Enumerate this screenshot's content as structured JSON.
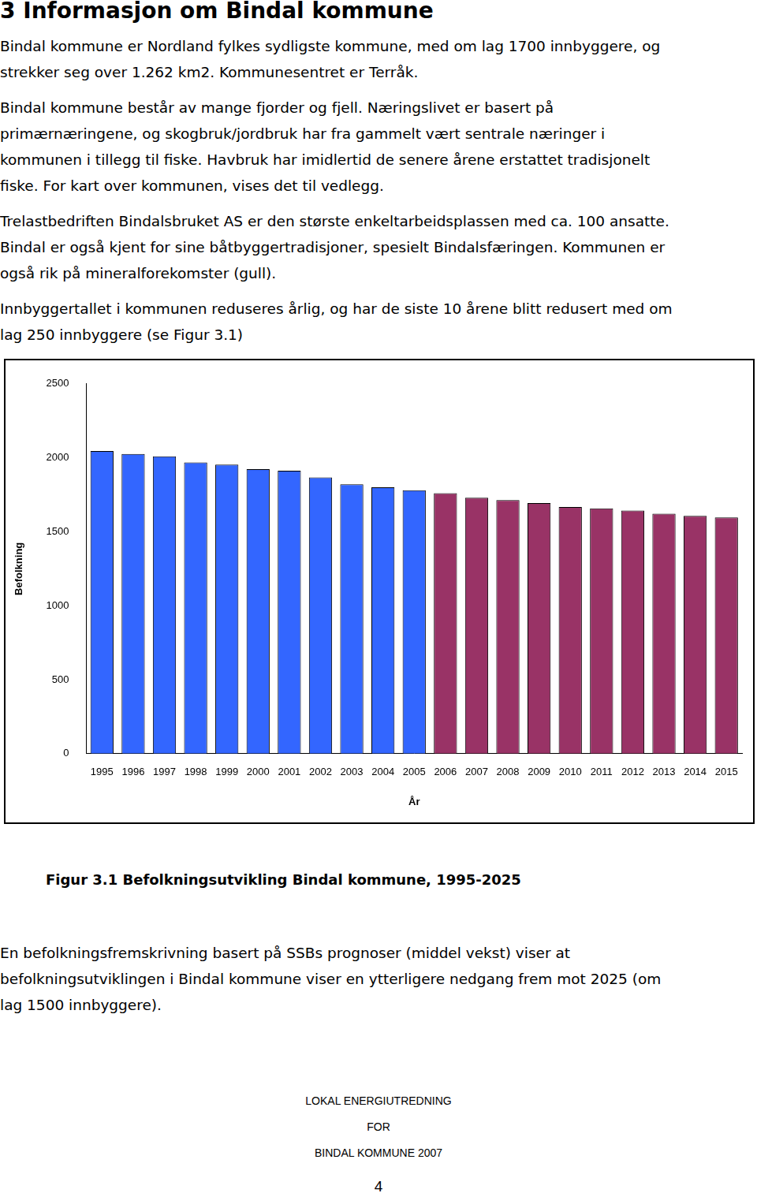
{
  "heading": "3 Informasjon om Bindal kommune",
  "intro": [
    [
      "Bindal kommune er Nordland fylkes sydligste kommune, med om lag 1700 innbyggere, og",
      "strekker seg over 1.262 km2. Kommunesentret er Terråk."
    ],
    [
      "Bindal kommune består av mange fjorder og fjell. Næringslivet er basert på",
      "primærnæringene, og skogbruk/jordbruk har fra gammelt vært sentrale næringer i",
      "kommunen i tillegg til fiske. Havbruk har imidlertid de senere årene erstattet tradisjonelt",
      "fiske. For kart over kommunen, vises det til vedlegg."
    ],
    [
      "Trelastbedriften Bindalsbruket AS er den største enkeltarbeidsplassen med ca. 100 ansatte.",
      "Bindal er også kjent for sine båtbyggertradisjoner, spesielt Bindalsfæringen. Kommunen er",
      "også rik på mineralforekomster (gull)."
    ],
    [
      "Innbyggertallet i kommunen reduseres årlig, og har de siste 10 årene blitt redusert med om",
      "lag 250 innbyggere (se Figur 3.1)"
    ]
  ],
  "chart_data": {
    "type": "bar",
    "title": "Figur 3.1 Befolkningsutvikling Bindal kommune, 1995-2025",
    "x_label": "År",
    "y_label": "Befolkning",
    "categories": [
      "1995",
      "1996",
      "1997",
      "1998",
      "1999",
      "2000",
      "2001",
      "2002",
      "2003",
      "2004",
      "2005",
      "2006",
      "2007",
      "2008",
      "2009",
      "2010",
      "2011",
      "2012",
      "2013",
      "2014",
      "2015"
    ],
    "values": [
      2046,
      2026,
      2010,
      1969,
      1954,
      1923,
      1913,
      1867,
      1821,
      1801,
      1781,
      1760,
      1730,
      1714,
      1694,
      1668,
      1658,
      1643,
      1622,
      1607,
      1597
    ],
    "colors": [
      "#3366ff",
      "#3366ff",
      "#3366ff",
      "#3366ff",
      "#3366ff",
      "#3366ff",
      "#3366ff",
      "#3366ff",
      "#3366ff",
      "#3366ff",
      "#3366ff",
      "#993366",
      "#993366",
      "#993366",
      "#993366",
      "#993366",
      "#993366",
      "#993366",
      "#993366",
      "#993366",
      "#993366"
    ],
    "ylim": [
      0,
      2500
    ],
    "yticks": [
      0,
      500,
      1000,
      1500,
      2000,
      2500
    ],
    "grid": false
  },
  "outro": [
    "En befolkningsfremskrivning basert på SSBs prognoser (middel vekst) viser at",
    "befolkningsutviklingen i Bindal kommune viser en ytterligere nedgang frem mot 2025 (om",
    "lag 1500 innbyggere)."
  ],
  "footer": [
    "LOKAL ENERGIUTREDNING",
    "FOR",
    "BINDAL KOMMUNE 2007"
  ],
  "page_number": "4"
}
